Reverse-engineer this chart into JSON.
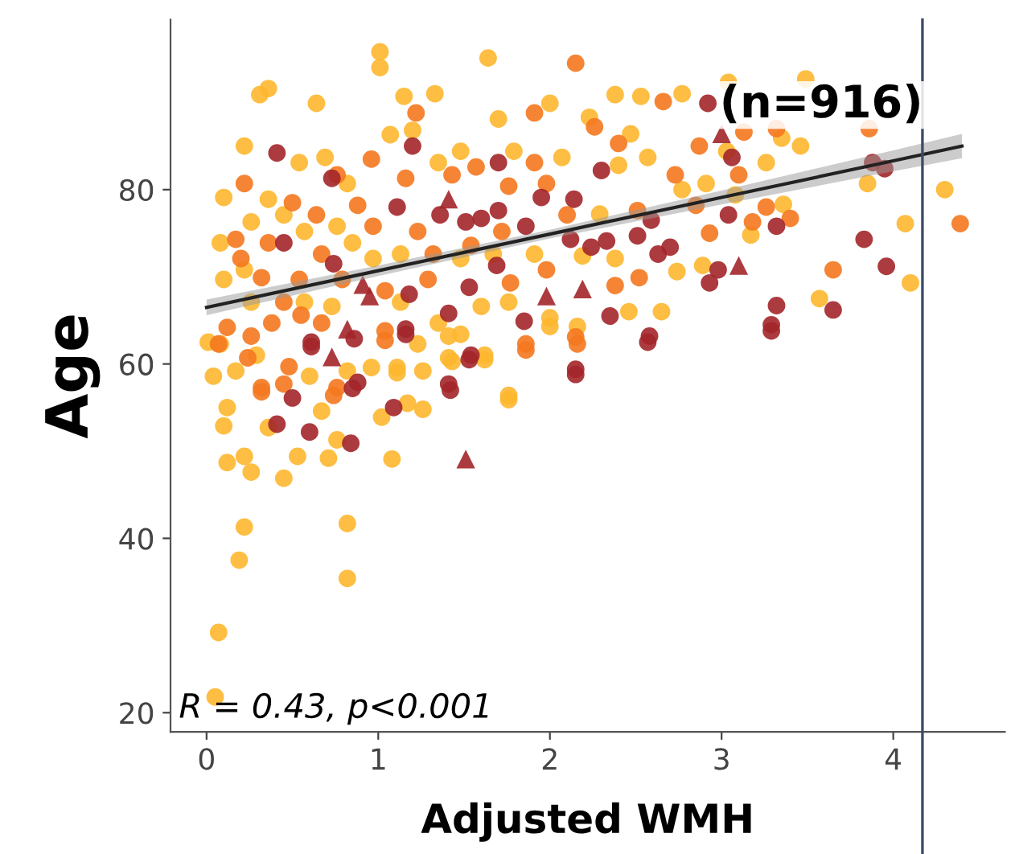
{
  "chart_data": {
    "type": "scatter",
    "xlabel": "Adjusted WMH",
    "ylabel": "Age",
    "annotations": [
      "(n=916)",
      "R = 0.43, p<0.001"
    ],
    "xlim": [
      -0.21,
      4.65
    ],
    "ylim": [
      17.8,
      99.5
    ],
    "xticks": [
      0,
      1,
      2,
      3,
      4
    ],
    "yticks": [
      20,
      40,
      60,
      80
    ],
    "grid": false,
    "legend": false,
    "ref_lines": [
      {
        "axis": "x",
        "value": 4.17,
        "color": "#3d4a6b"
      }
    ],
    "series": [
      {
        "color": "#fdb72f",
        "marker": "circle",
        "x": [
          1.01,
          1.01,
          1.64,
          0.31,
          0.36,
          0.64,
          1.15,
          1.33,
          2.38,
          2.53,
          2.77,
          3.04,
          3.49,
          1.7,
          2.0,
          2.47,
          0.22,
          3.46,
          3.85,
          4.3,
          4.07,
          4.1,
          3.57,
          3.36,
          3.17,
          2.89,
          2.74,
          2.65,
          2.46,
          2.16,
          2.0,
          1.76,
          1.62,
          1.41,
          1.11,
          0.96,
          0.08,
          0.01,
          0.1,
          0.1,
          0.08,
          0.26,
          0.54,
          0.69,
          0.82,
          1.07,
          1.2,
          1.35,
          1.48,
          1.79,
          2.07,
          2.23,
          2.4,
          2.57,
          2.77,
          2.91,
          3.08,
          3.26,
          3.35,
          3.03,
          2.29,
          2.38,
          2.19,
          1.91,
          1.67,
          1.48,
          1.13,
          0.97,
          0.85,
          0.76,
          0.57,
          0.45,
          0.36,
          0.22,
          0.26,
          0.57,
          0.73,
          1.13,
          1.35,
          1.6,
          1.76,
          1.48,
          0.29,
          0.17,
          0.04,
          0.6,
          0.82,
          1.23,
          0.12,
          0.1,
          0.12,
          0.22,
          0.26,
          0.45,
          0.53,
          0.71,
          1.08,
          0.22,
          0.19,
          0.82,
          0.82,
          0.07,
          0.05,
          1.76,
          1.26,
          1.02,
          1.17,
          0.67,
          0.76,
          0.36,
          1.11,
          1.26,
          1.43,
          1.62,
          1.41,
          2.0
        ],
        "values": [
          95.8,
          94.0,
          95.1,
          90.9,
          91.6,
          89.9,
          90.7,
          91.0,
          90.9,
          90.7,
          91.0,
          92.3,
          92.7,
          88.1,
          89.9,
          86.4,
          85.0,
          85.0,
          80.7,
          80.0,
          76.1,
          69.3,
          67.5,
          78.3,
          74.8,
          71.3,
          70.6,
          66.0,
          66.0,
          64.3,
          65.3,
          56.4,
          61.0,
          60.7,
          59.6,
          59.6,
          62.3,
          62.5,
          79.1,
          69.7,
          73.9,
          76.3,
          83.1,
          83.7,
          80.7,
          86.3,
          86.8,
          83.1,
          84.4,
          84.4,
          83.7,
          88.3,
          82.8,
          83.7,
          80.0,
          80.7,
          79.4,
          83.1,
          85.9,
          84.4,
          77.2,
          72.1,
          72.4,
          72.6,
          72.6,
          72.1,
          72.6,
          72.1,
          73.9,
          75.8,
          75.2,
          77.1,
          78.9,
          70.8,
          67.1,
          67.1,
          66.6,
          67.1,
          64.7,
          66.6,
          67.1,
          63.4,
          61.0,
          59.2,
          58.6,
          58.6,
          59.2,
          62.3,
          55.0,
          52.9,
          48.7,
          49.4,
          47.6,
          46.9,
          49.4,
          49.2,
          49.1,
          41.3,
          37.5,
          41.7,
          35.4,
          29.2,
          21.8,
          55.9,
          54.8,
          53.9,
          55.5,
          54.6,
          51.3,
          52.7,
          59.0,
          59.2,
          60.3,
          60.5,
          63.2,
          64.3
        ]
      },
      {
        "color": "#f4781f",
        "marker": "circle",
        "x": [
          2.15,
          2.66,
          1.22,
          1.91,
          2.87,
          3.32,
          3.13,
          3.86,
          4.39,
          3.65,
          3.26,
          3.4,
          2.93,
          2.73,
          2.52,
          2.38,
          2.15,
          1.86,
          1.77,
          1.98,
          2.4,
          2.26,
          1.91,
          1.98,
          1.57,
          1.43,
          1.16,
          0.96,
          0.88,
          0.76,
          0.64,
          0.5,
          0.36,
          0.22,
          0.17,
          0.2,
          0.32,
          0.45,
          0.55,
          0.67,
          0.38,
          0.26,
          0.12,
          0.07,
          0.48,
          0.32,
          0.76,
          1.04,
          1.04,
          1.29,
          1.32,
          1.54,
          1.72,
          1.76,
          2.1,
          2.51,
          2.85,
          3.1,
          3.18,
          0.67,
          0.79,
          0.54,
          0.97,
          1.23,
          0.32,
          0.45,
          0.74,
          1.04,
          1.86,
          2.16,
          0.24
        ],
        "values": [
          94.5,
          90.1,
          88.8,
          88.8,
          85.0,
          87.0,
          86.6,
          87.0,
          76.1,
          70.8,
          78.0,
          76.7,
          75.0,
          81.7,
          69.9,
          69.0,
          63.1,
          62.3,
          69.3,
          70.8,
          85.3,
          87.2,
          83.1,
          80.7,
          82.6,
          81.7,
          81.3,
          83.5,
          78.2,
          81.7,
          77.1,
          78.5,
          73.9,
          80.7,
          74.3,
          72.1,
          69.9,
          67.1,
          65.6,
          64.7,
          64.7,
          63.2,
          64.2,
          62.3,
          59.7,
          57.3,
          57.3,
          63.8,
          68.4,
          69.7,
          72.6,
          73.6,
          75.2,
          80.4,
          77.1,
          77.6,
          78.2,
          81.7,
          76.3,
          72.6,
          69.7,
          69.7,
          75.8,
          75.2,
          56.8,
          57.7,
          56.4,
          62.7,
          61.6,
          62.3,
          60.7
        ]
      },
      {
        "color": "#a3262a",
        "marker": "circle",
        "x": [
          0.41,
          2.92,
          1.2,
          0.73,
          1.7,
          2.3,
          1.11,
          1.36,
          1.51,
          1.6,
          1.7,
          1.86,
          2.14,
          1.95,
          2.12,
          2.24,
          2.33,
          2.51,
          2.59,
          2.63,
          2.7,
          3.04,
          3.06,
          3.32,
          2.98,
          2.93,
          3.32,
          3.29,
          3.65,
          3.83,
          3.96,
          3.88,
          3.95,
          2.35,
          2.58,
          2.15,
          1.41,
          1.53,
          1.41,
          1.69,
          1.85,
          1.16,
          0.86,
          0.61,
          0.45,
          1.18,
          0.74,
          1.54,
          0.88,
          1.16,
          1.53,
          1.42,
          2.15,
          2.57,
          3.29,
          1.09,
          0.84,
          0.61,
          0.5,
          0.6,
          0.41,
          0.85
        ],
        "values": [
          84.2,
          89.9,
          85.0,
          81.3,
          83.1,
          82.2,
          78.0,
          77.1,
          76.3,
          76.7,
          77.6,
          75.8,
          78.9,
          79.1,
          74.3,
          73.4,
          74.1,
          74.7,
          76.5,
          72.6,
          73.4,
          77.1,
          83.7,
          75.8,
          70.8,
          69.3,
          66.7,
          64.5,
          66.2,
          74.3,
          71.2,
          83.1,
          82.4,
          65.5,
          63.2,
          59.4,
          57.7,
          68.8,
          65.8,
          71.3,
          64.9,
          64.0,
          62.9,
          62.5,
          73.9,
          68.0,
          71.5,
          61.0,
          57.9,
          63.4,
          60.5,
          57.0,
          58.8,
          62.5,
          63.8,
          55.0,
          50.9,
          62.0,
          56.1,
          52.2,
          53.1,
          57.2
        ]
      },
      {
        "color": "#a3262a",
        "marker": "triangle",
        "x": [
          1.41,
          3.0,
          3.1,
          1.98,
          2.19,
          0.95,
          0.91,
          0.82,
          0.73,
          1.51
        ],
        "values": [
          78.9,
          86.4,
          71.3,
          67.8,
          68.6,
          67.8,
          69.1,
          64.0,
          60.8,
          49.1
        ]
      },
      {
        "type": "line",
        "color": "#222222",
        "x": [
          0,
          1,
          2,
          3,
          4,
          4.4
        ],
        "values": [
          66.5,
          70.7,
          74.9,
          79.1,
          83.3,
          85.0
        ],
        "lower": [
          65.6,
          70.1,
          74.4,
          78.3,
          82.1,
          83.6
        ],
        "upper": [
          67.4,
          71.3,
          75.4,
          79.9,
          84.5,
          86.4
        ]
      }
    ]
  }
}
